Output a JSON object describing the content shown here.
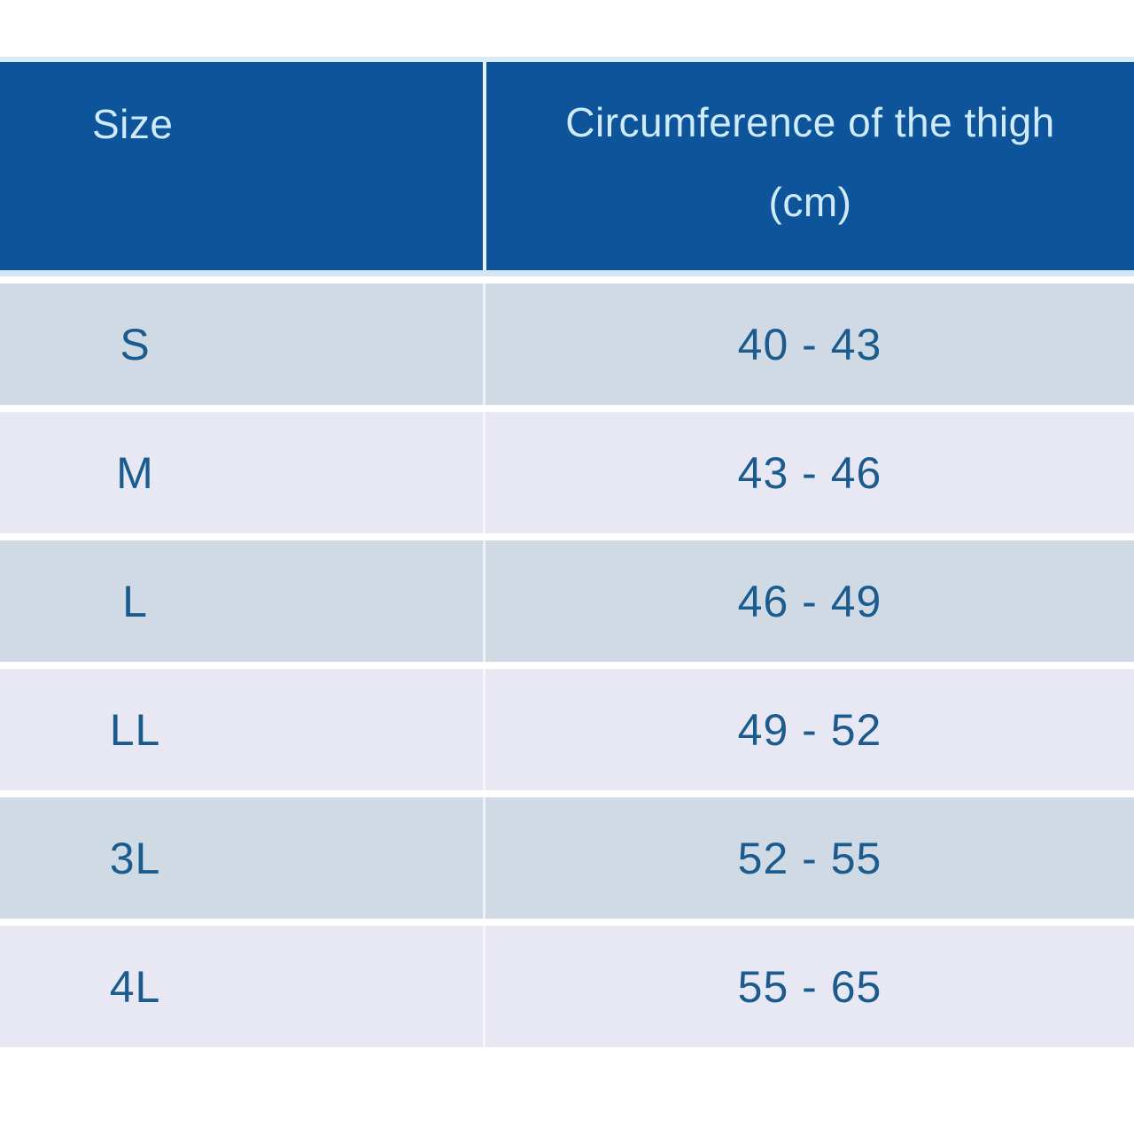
{
  "header": {
    "size_label": "Size",
    "circumference_line1": "Circumference of the thigh",
    "circumference_line2": "(cm)"
  },
  "rows": [
    {
      "size": "S",
      "range": "40 - 43"
    },
    {
      "size": "M",
      "range": "43 - 46"
    },
    {
      "size": "L",
      "range": "46 - 49"
    },
    {
      "size": "LL",
      "range": "49 - 52"
    },
    {
      "size": "3L",
      "range": "52 - 55"
    },
    {
      "size": "4L",
      "range": "55 - 65"
    }
  ],
  "colors": {
    "header_bg": "#0d549b",
    "header_text": "#cfeaf8",
    "row_blue_gray": "#cfdae5",
    "row_lavender": "#e8e8f4",
    "cell_text": "#1b5b8d",
    "divider": "#e6f3fb"
  },
  "chart_data": {
    "type": "table",
    "title": "Size chart — circumference of the thigh",
    "columns": [
      "Size",
      "Circumference of the thigh (cm)"
    ],
    "rows": [
      [
        "S",
        "40 - 43"
      ],
      [
        "M",
        "43 - 46"
      ],
      [
        "L",
        "46 - 49"
      ],
      [
        "LL",
        "49 - 52"
      ],
      [
        "3L",
        "52 - 55"
      ],
      [
        "4L",
        "55 - 65"
      ]
    ],
    "ranges_cm": [
      {
        "size": "S",
        "min": 40,
        "max": 43
      },
      {
        "size": "M",
        "min": 43,
        "max": 46
      },
      {
        "size": "L",
        "min": 46,
        "max": 49
      },
      {
        "size": "LL",
        "min": 49,
        "max": 52
      },
      {
        "size": "3L",
        "min": 52,
        "max": 55
      },
      {
        "size": "4L",
        "min": 55,
        "max": 65
      }
    ]
  }
}
